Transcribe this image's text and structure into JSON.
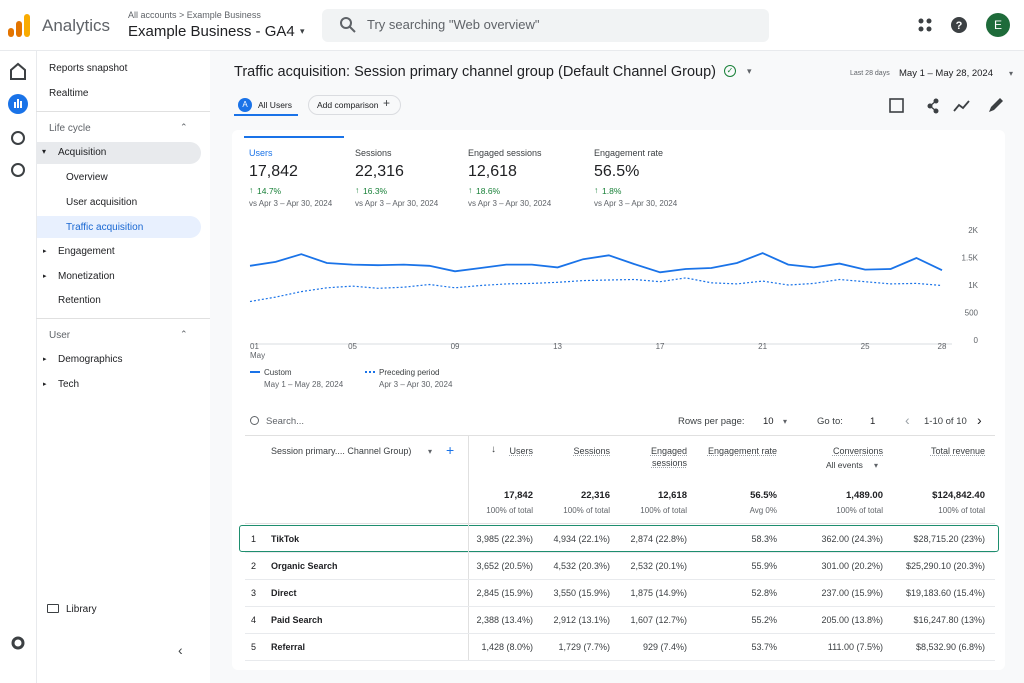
{
  "header": {
    "product": "Analytics",
    "breadcrumb": "All accounts > Example Business",
    "property": "Example Business - GA4",
    "search_placeholder": "Try searching \"Web overview\"",
    "avatar": "E"
  },
  "sidebar": {
    "top": [
      "Reports snapshot",
      "Realtime"
    ],
    "lifecycle": {
      "title": "Life cycle",
      "items": [
        "Acquisition",
        "Overview",
        "User acquisition",
        "Traffic acquisition",
        "Engagement",
        "Monetization",
        "Retention"
      ]
    },
    "user": {
      "title": "User",
      "items": [
        "Demographics",
        "Tech"
      ]
    },
    "library": "Library"
  },
  "report": {
    "title": "Traffic acquisition: Session primary channel group (Default Channel Group)",
    "date_label": "Last 28 days",
    "date_range": "May 1 – May 28, 2024",
    "segment_badge": "A",
    "segment": "All Users",
    "add_comparison": "Add comparison"
  },
  "metrics": [
    {
      "label": "Users",
      "value": "17,842",
      "change": "14.7%",
      "compare": "vs Apr 3 – Apr 30, 2024"
    },
    {
      "label": "Sessions",
      "value": "22,316",
      "change": "16.3%",
      "compare": "vs Apr 3 – Apr 30, 2024"
    },
    {
      "label": "Engaged sessions",
      "value": "12,618",
      "change": "18.6%",
      "compare": "vs Apr 3 – Apr 30, 2024"
    },
    {
      "label": "Engagement rate",
      "value": "56.5%",
      "change": "1.8%",
      "compare": "vs Apr 3 – Apr 30, 2024"
    }
  ],
  "chart_data": {
    "type": "line",
    "categories": [
      "01",
      null,
      null,
      null,
      "05",
      null,
      null,
      null,
      "09",
      null,
      null,
      null,
      "13",
      null,
      null,
      null,
      "17",
      null,
      null,
      null,
      "21",
      null,
      null,
      null,
      "25",
      null,
      null,
      "28"
    ],
    "x_month": "May",
    "ylim": [
      0,
      2000
    ],
    "yticks": [
      0,
      500,
      {
        "value": 1000,
        "label": "1K"
      },
      {
        "value": 1500,
        "label": "1.5K"
      },
      {
        "value": 2000,
        "label": "2K"
      }
    ],
    "series": [
      {
        "name": "Custom",
        "range": "May 1 – May 28, 2024",
        "color": "#1a73e8",
        "values": [
          1350,
          1420,
          1560,
          1400,
          1370,
          1360,
          1370,
          1350,
          1250,
          1310,
          1370,
          1370,
          1320,
          1470,
          1540,
          1380,
          1230,
          1290,
          1310,
          1400,
          1580,
          1370,
          1320,
          1390,
          1280,
          1290,
          1490,
          1270
        ]
      },
      {
        "name": "Preceding period",
        "range": "Apr 3 – Apr 30, 2024",
        "color": "#1a73e8",
        "dashed": true,
        "values": [
          700,
          780,
          880,
          950,
          980,
          940,
          960,
          1010,
          950,
          990,
          1020,
          1030,
          1050,
          1080,
          1090,
          1100,
          1060,
          1130,
          1040,
          1020,
          1070,
          1000,
          1030,
          1100,
          1060,
          1020,
          1030,
          990
        ]
      }
    ]
  },
  "table": {
    "search": "Search...",
    "rows_per_page_label": "Rows per page:",
    "rows_per_page": "10",
    "goto_label": "Go to:",
    "goto": "1",
    "pagination": "1-10 of 10",
    "dimension": "Session primary.... Channel Group)",
    "columns": [
      "Users",
      "Sessions",
      "Engaged sessions",
      "Engagement rate",
      "Conversions",
      "Total revenue"
    ],
    "conversions_filter": "All events",
    "totals": [
      [
        "17,842",
        "100% of total"
      ],
      [
        "22,316",
        "100% of total"
      ],
      [
        "12,618",
        "100% of total"
      ],
      [
        "56.5%",
        "Avg 0%"
      ],
      [
        "1,489.00",
        "100% of total"
      ],
      [
        "$124,842.40",
        "100% of total"
      ]
    ],
    "rows": [
      [
        "1",
        "TikTok",
        "3,985 (22.3%)",
        "4,934 (22.1%)",
        "2,874 (22.8%)",
        "58.3%",
        "362.00 (24.3%)",
        "$28,715.20 (23%)"
      ],
      [
        "2",
        "Organic Search",
        "3,652 (20.5%)",
        "4,532 (20.3%)",
        "2,532 (20.1%)",
        "55.9%",
        "301.00 (20.2%)",
        "$25,290.10 (20.3%)"
      ],
      [
        "3",
        "Direct",
        "2,845 (15.9%)",
        "3,550 (15.9%)",
        "1,875 (14.9%)",
        "52.8%",
        "237.00 (15.9%)",
        "$19,183.60 (15.4%)"
      ],
      [
        "4",
        "Paid Search",
        "2,388 (13.4%)",
        "2,912 (13.1%)",
        "1,607 (12.7%)",
        "55.2%",
        "205.00 (13.8%)",
        "$16,247.80 (13%)"
      ],
      [
        "5",
        "Referral",
        "1,428 (8.0%)",
        "1,729 (7.7%)",
        "929 (7.4%)",
        "53.7%",
        "111.00 (7.5%)",
        "$8,532.90 (6.8%)"
      ]
    ]
  }
}
